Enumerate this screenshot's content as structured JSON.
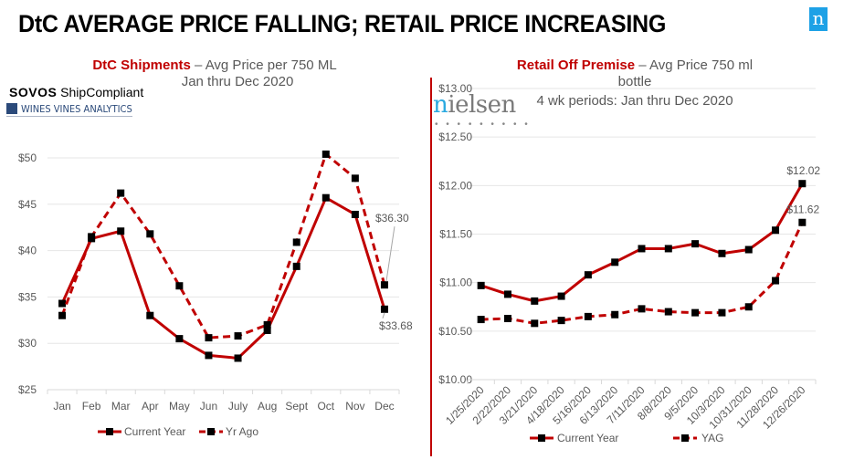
{
  "slide": {
    "title": "DtC AVERAGE PRICE FALLING; RETAIL PRICE INCREASING",
    "brand_logo_letter": "n",
    "left_logos": {
      "sovos_bold": "SOVOS",
      "sovos_text": " ShipCompliant",
      "wva": "WINES VINES ANALYTICS"
    },
    "right_logo": {
      "first": "n",
      "rest": "ielsen",
      "dots": "• • • • • • • • •"
    }
  },
  "colors": {
    "series": "#c00000",
    "marker": "#000000",
    "grid": "#e6e6e6",
    "axis_text": "#595959",
    "accent_line": "#c00000",
    "brand_blue": "#1da1e6"
  },
  "chart_data": [
    {
      "type": "line",
      "title_highlight": "DtC Shipments",
      "title_rest": " – Avg Price per 750 ML",
      "subtitle": "Jan thru Dec 2020",
      "xlabel": "",
      "ylabel": "",
      "categories": [
        "Jan",
        "Feb",
        "Mar",
        "Apr",
        "May",
        "Jun",
        "July",
        "Aug",
        "Sept",
        "Oct",
        "Nov",
        "Dec"
      ],
      "ylim": [
        25,
        50
      ],
      "yticks": [
        25,
        30,
        35,
        40,
        45,
        50
      ],
      "ytick_labels": [
        "$25",
        "$30",
        "$35",
        "$40",
        "$45",
        "$50"
      ],
      "grid": true,
      "legend": "bottom",
      "series": [
        {
          "name": "Current Year",
          "style": "solid",
          "values": [
            34.3,
            41.3,
            42.1,
            33.0,
            30.5,
            28.7,
            28.4,
            31.4,
            38.3,
            45.7,
            43.9,
            33.68
          ]
        },
        {
          "name": "Yr Ago",
          "style": "dashed",
          "values": [
            33.0,
            41.5,
            46.2,
            41.8,
            36.2,
            30.6,
            30.8,
            32.0,
            40.9,
            50.4,
            47.8,
            36.3
          ]
        }
      ],
      "annotations": [
        {
          "series": "Yr Ago",
          "category": "Dec",
          "text": "$36.30"
        },
        {
          "series": "Current Year",
          "category": "Dec",
          "text": "$33.68"
        }
      ]
    },
    {
      "type": "line",
      "title_highlight": "Retail Off Premise",
      "title_rest": " – Avg Price 750 ml",
      "title_line2": "bottle",
      "subtitle": "4 wk periods: Jan thru Dec 2020",
      "xlabel": "",
      "ylabel": "",
      "categories": [
        "1/25/2020",
        "2/22/2020",
        "3/21/2020",
        "4/18/2020",
        "5/16/2020",
        "6/13/2020",
        "7/11/2020",
        "8/8/2020",
        "9/5/2020",
        "10/3/2020",
        "10/31/2020",
        "11/28/2020",
        "12/26/2020"
      ],
      "ylim": [
        10.0,
        13.0
      ],
      "yticks": [
        10.0,
        10.5,
        11.0,
        11.5,
        12.0,
        12.5,
        13.0
      ],
      "ytick_labels": [
        "$10.00",
        "$10.50",
        "$11.00",
        "$11.50",
        "$12.00",
        "$12.50",
        "$13.00"
      ],
      "grid": true,
      "legend": "bottom",
      "series": [
        {
          "name": "Current Year",
          "style": "solid",
          "values": [
            10.97,
            10.88,
            10.81,
            10.86,
            11.08,
            11.21,
            11.35,
            11.35,
            11.4,
            11.3,
            11.34,
            11.54,
            12.02
          ]
        },
        {
          "name": "YAG",
          "style": "dashed",
          "values": [
            10.62,
            10.63,
            10.58,
            10.61,
            10.65,
            10.67,
            10.73,
            10.7,
            10.69,
            10.69,
            10.75,
            11.02,
            11.62
          ]
        }
      ],
      "annotations": [
        {
          "series": "Current Year",
          "category": "12/26/2020",
          "text": "$12.02"
        },
        {
          "series": "YAG",
          "category": "12/26/2020",
          "text": "$11.62"
        }
      ]
    }
  ]
}
